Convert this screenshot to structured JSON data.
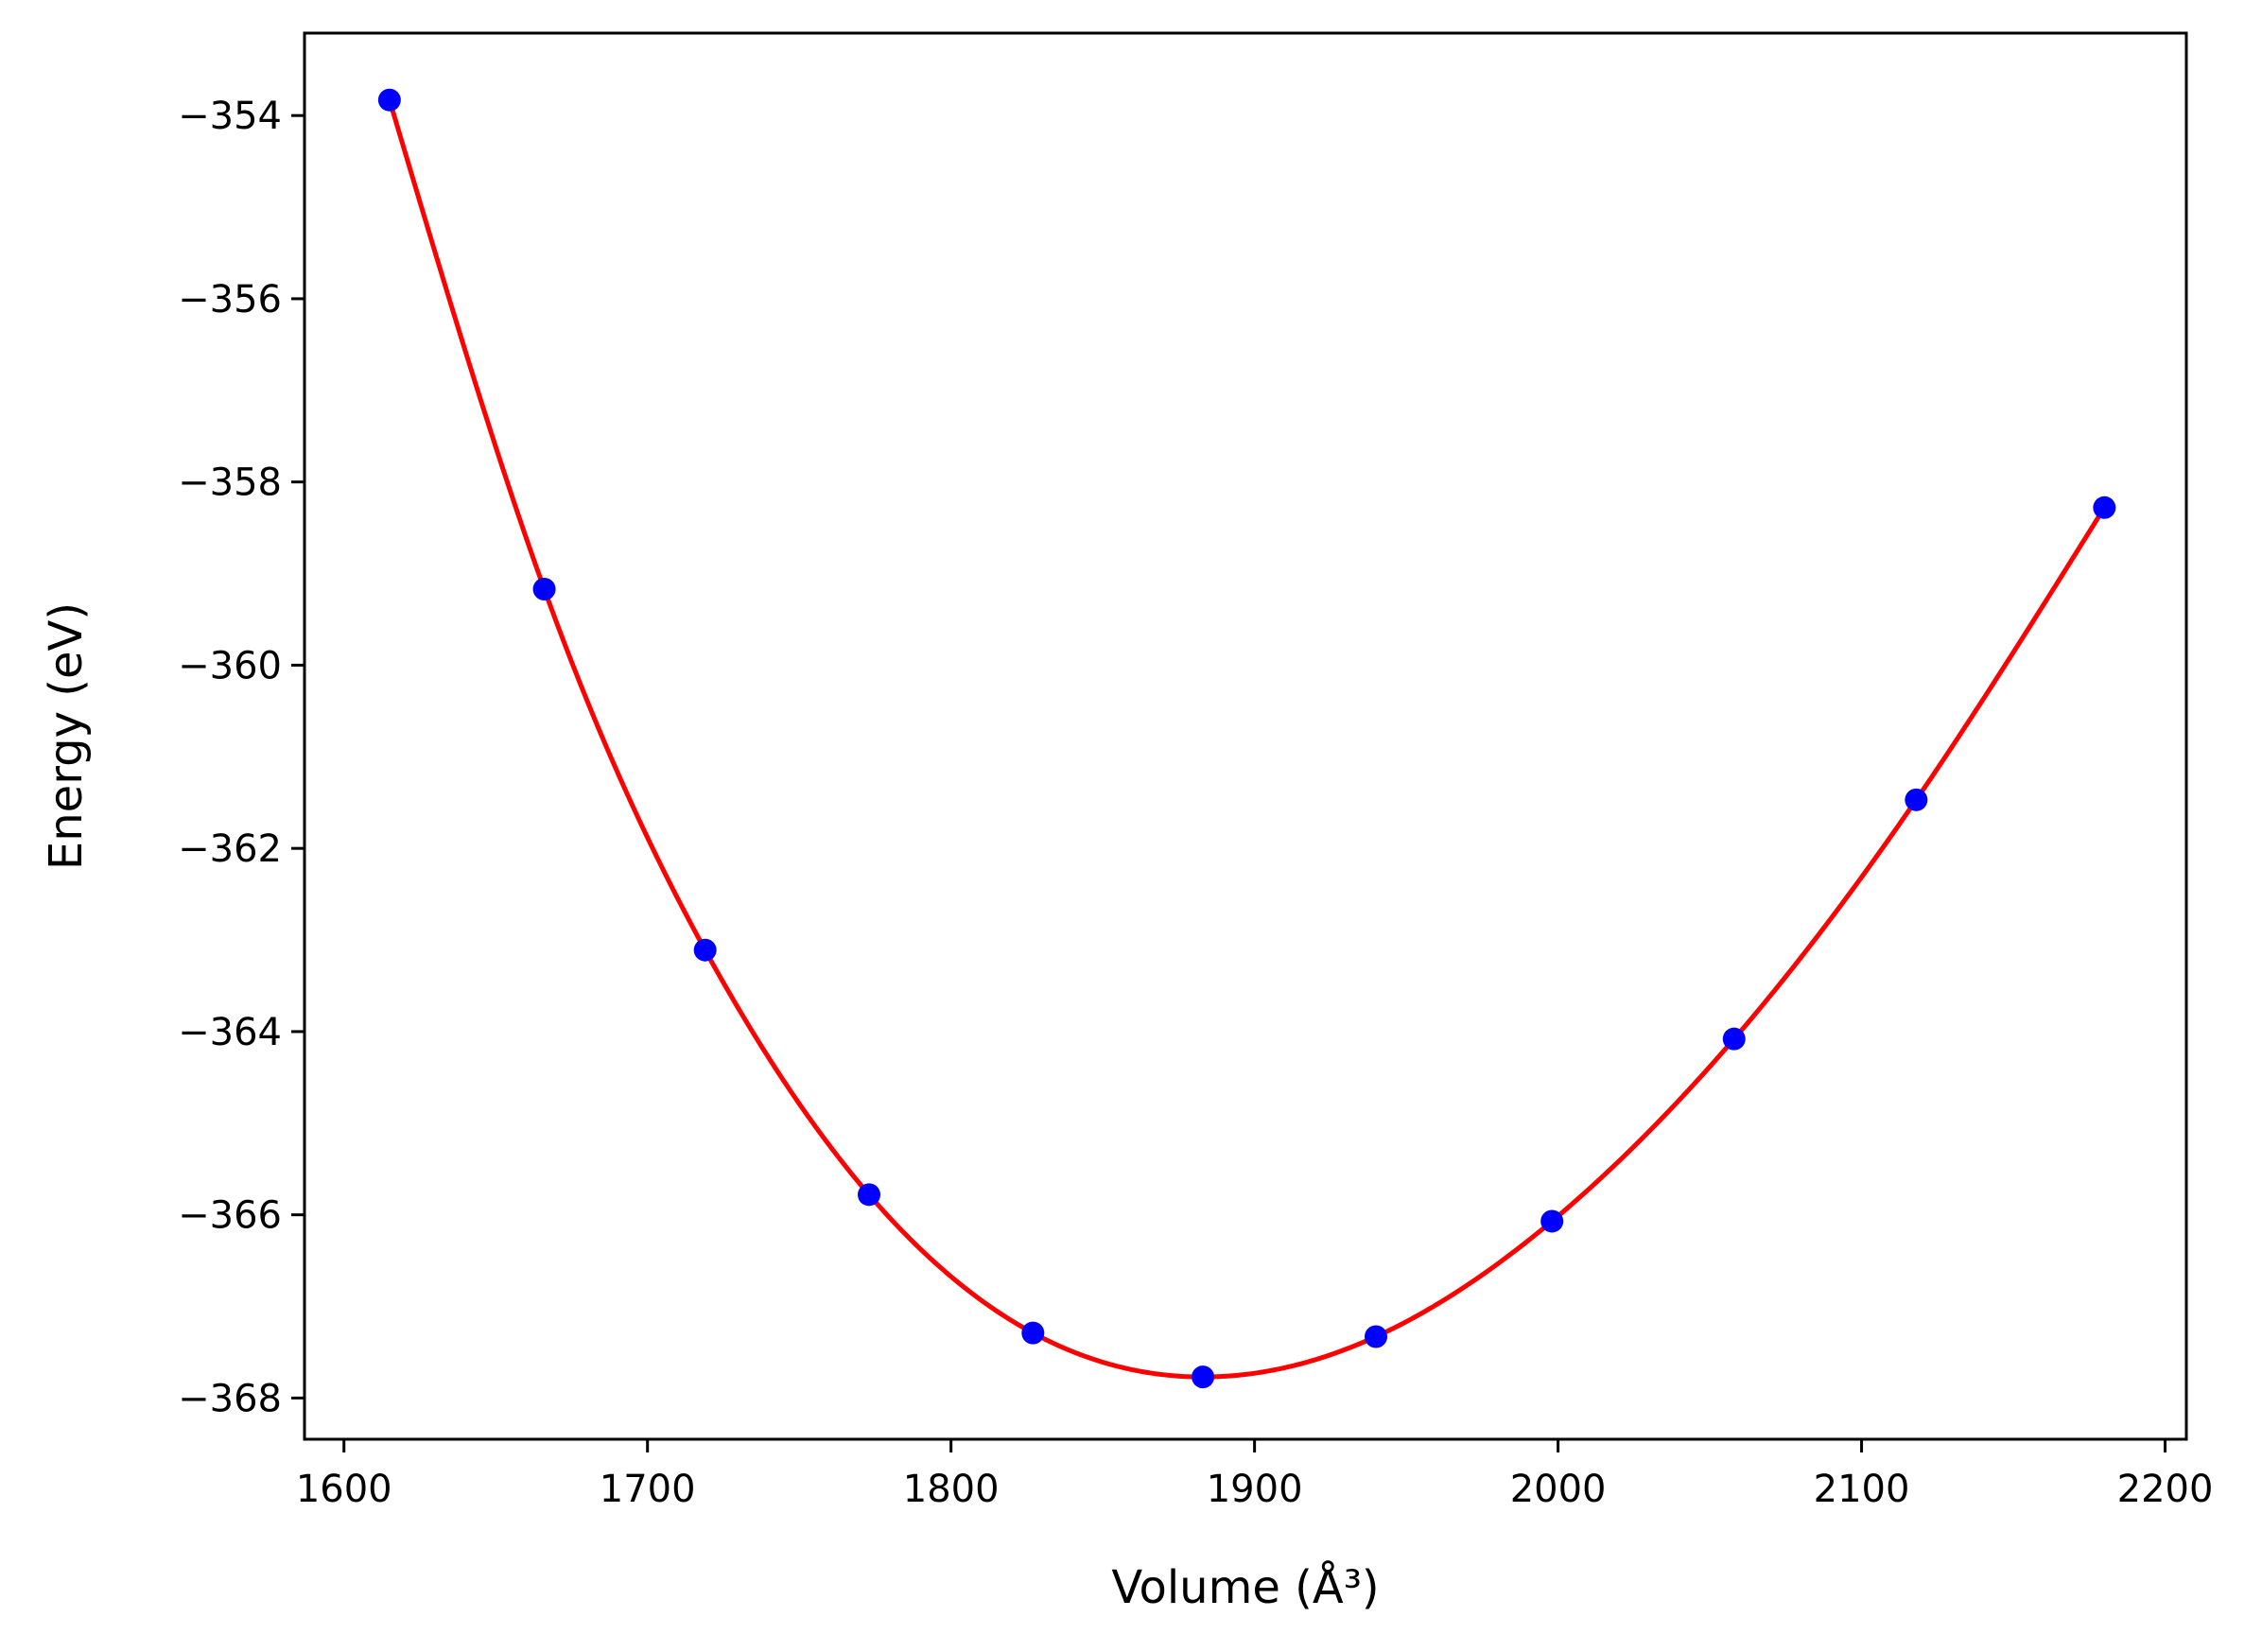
{
  "chart_data": {
    "type": "line",
    "xlabel": "Volume (Å³)",
    "ylabel": "Energy (eV)",
    "xlim": [
      1587,
      2207
    ],
    "ylim": [
      -368.45,
      -353.1
    ],
    "xticks": [
      1600,
      1700,
      1800,
      1900,
      2000,
      2100,
      2200
    ],
    "yticks": [
      -354,
      -356,
      -358,
      -360,
      -362,
      -364,
      -366,
      -368
    ],
    "xtick_labels": [
      "1600",
      "1700",
      "1800",
      "1900",
      "2000",
      "2100",
      "2200"
    ],
    "ytick_labels": [
      "−354",
      "−356",
      "−358",
      "−360",
      "−362",
      "−364",
      "−366",
      "−368"
    ],
    "grid": false,
    "series": [
      {
        "kind": "scatter",
        "color": "#0000ff",
        "x": [
          1615,
          1666,
          1719,
          1773,
          1827,
          1883,
          1940,
          1998,
          2058,
          2118,
          2180
        ],
        "y": [
          -353.83,
          -359.17,
          -363.11,
          -365.78,
          -367.29,
          -367.77,
          -367.33,
          -366.07,
          -364.08,
          -361.47,
          -358.28
        ]
      },
      {
        "kind": "fit-curve",
        "color": "#ff0000",
        "x": [
          1615,
          1666,
          1719,
          1773,
          1827,
          1883,
          1940,
          1998,
          2058,
          2118,
          2180
        ],
        "y": [
          -353.83,
          -359.17,
          -363.11,
          -365.78,
          -367.29,
          -367.77,
          -367.33,
          -366.07,
          -364.08,
          -361.47,
          -358.28
        ]
      }
    ]
  }
}
